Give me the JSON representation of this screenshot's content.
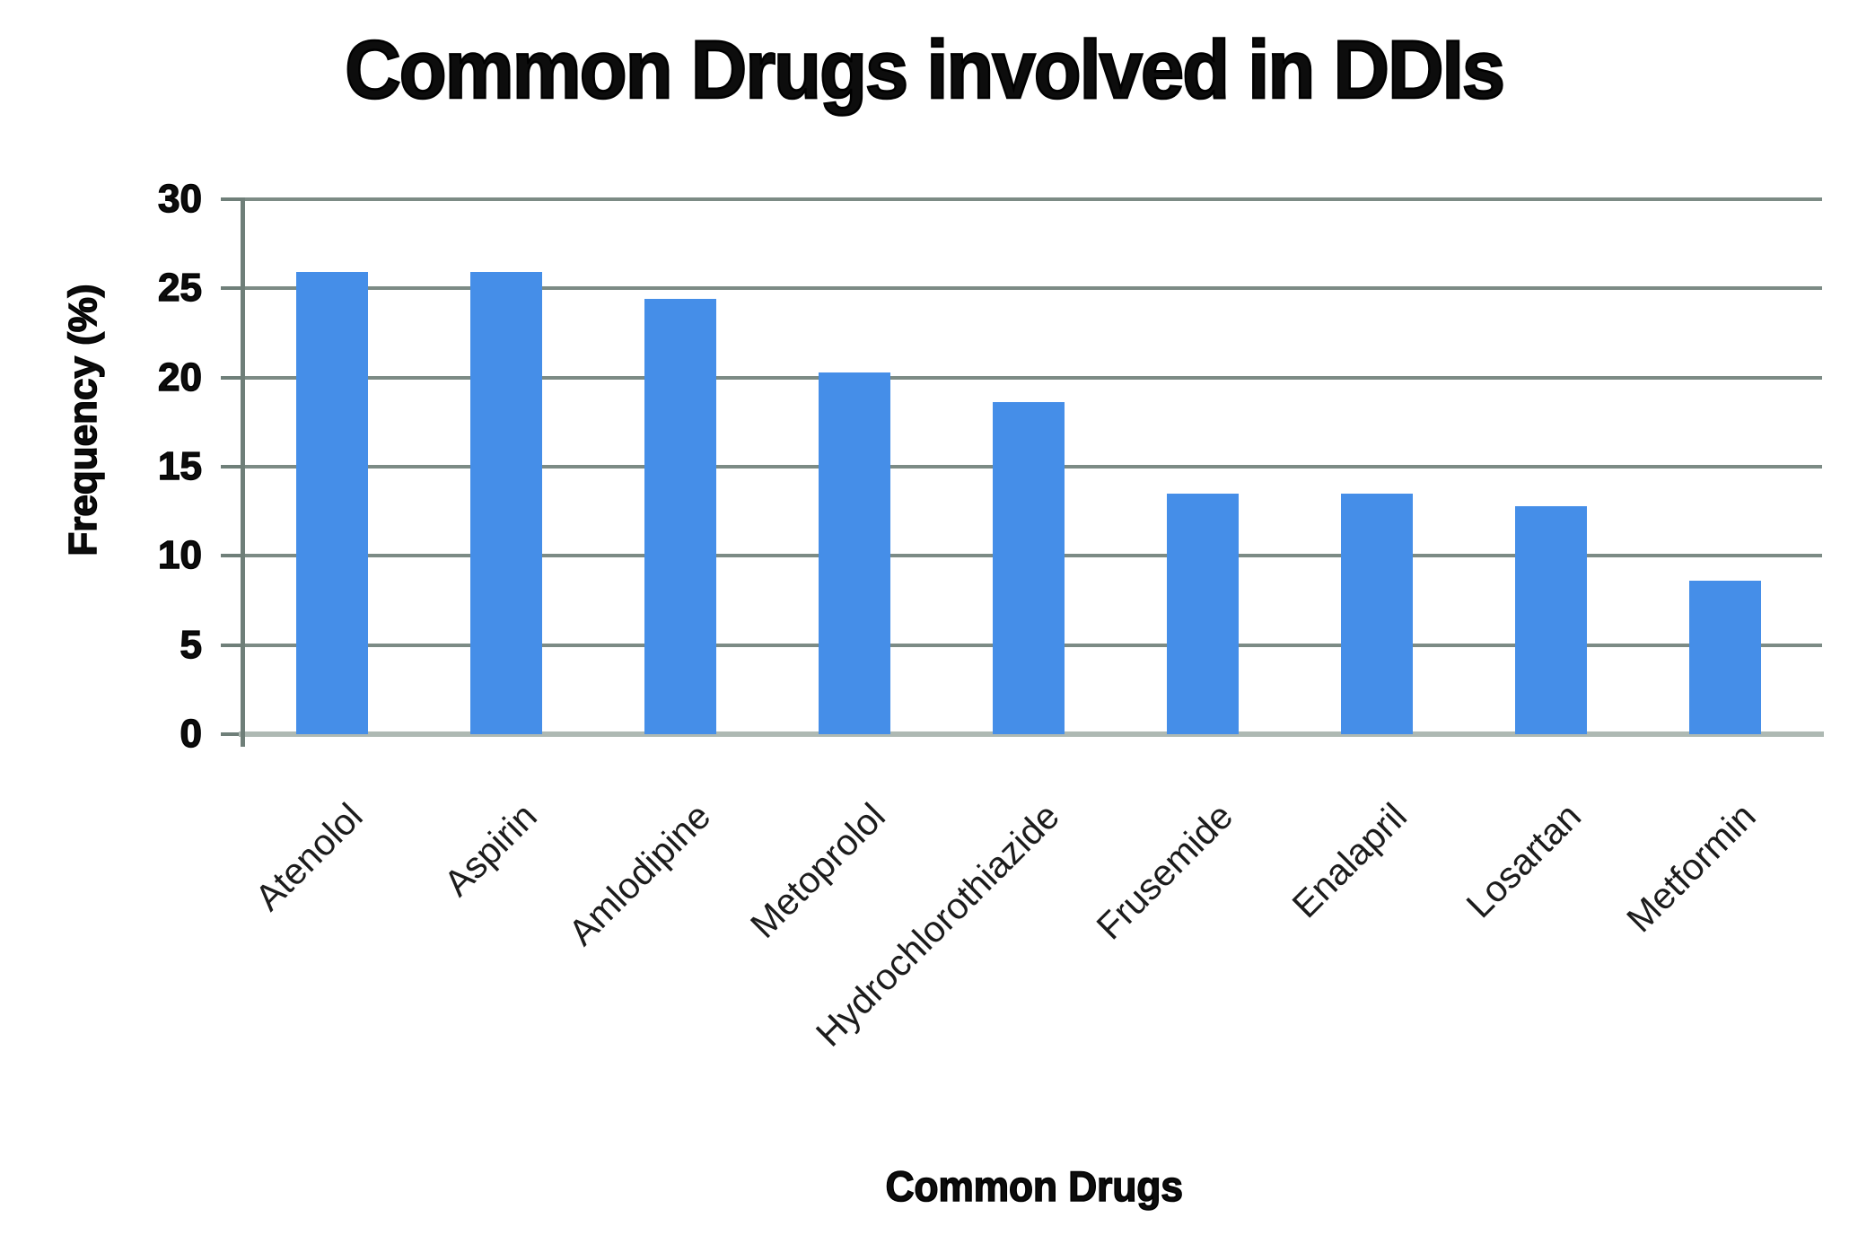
{
  "chart_data": {
    "type": "bar",
    "title": "Common Drugs involved in DDIs",
    "xlabel": "Common Drugs",
    "ylabel": "Frequency (%)",
    "categories": [
      "Atenolol",
      "Aspirin",
      "Amlodipine",
      "Metoprolol",
      "Hydrochlorothiazide",
      "Frusemide",
      "Enalapril",
      "Losartan",
      "Metformin"
    ],
    "values": [
      25.9,
      25.9,
      24.4,
      20.3,
      18.6,
      13.5,
      13.5,
      12.8,
      8.6
    ],
    "ylim": [
      0,
      30
    ],
    "yticks": [
      0,
      5,
      10,
      15,
      20,
      25,
      30
    ],
    "grid": "horizontal",
    "legend": false,
    "bar_color": "#458ee8",
    "grid_color": "#7c8b85",
    "axis_color": "#6f7f79",
    "baseline_color": "#aeb9b3",
    "text_color": "#0d0d0d"
  }
}
